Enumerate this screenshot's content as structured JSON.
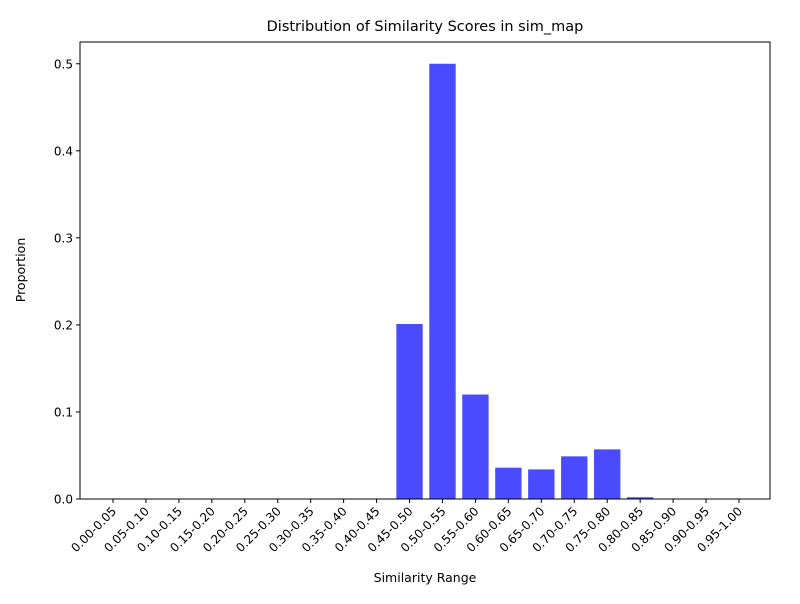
{
  "chart_data": {
    "type": "bar",
    "title": "Distribution of Similarity Scores in sim_map",
    "xlabel": "Similarity Range",
    "ylabel": "Proportion",
    "categories": [
      "0.00-0.05",
      "0.05-0.10",
      "0.10-0.15",
      "0.15-0.20",
      "0.20-0.25",
      "0.25-0.30",
      "0.30-0.35",
      "0.35-0.40",
      "0.40-0.45",
      "0.45-0.50",
      "0.50-0.55",
      "0.55-0.60",
      "0.60-0.65",
      "0.65-0.70",
      "0.70-0.75",
      "0.75-0.80",
      "0.80-0.85",
      "0.85-0.90",
      "0.90-0.95",
      "0.95-1.00"
    ],
    "values": [
      0,
      0,
      0,
      0,
      0,
      0,
      0,
      0,
      0,
      0.201,
      0.5,
      0.12,
      0.036,
      0.034,
      0.049,
      0.057,
      0.002,
      0,
      0,
      0
    ],
    "yticks": [
      "0.0",
      "0.1",
      "0.2",
      "0.3",
      "0.4",
      "0.5"
    ],
    "ylim": [
      0,
      0.525
    ],
    "bar_color": "#4a4aff",
    "grid": false,
    "legend": false
  }
}
